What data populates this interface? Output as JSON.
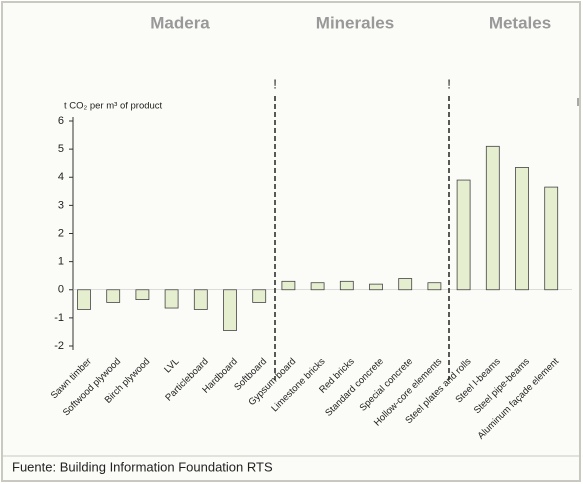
{
  "chart_data": {
    "type": "bar",
    "groups": [
      "Madera",
      "Minerales",
      "Metales"
    ],
    "annotations": [
      "!",
      "!"
    ],
    "y_label": "t CO₂ per m³ of product",
    "source": "Fuente: Building Information Foundation RTS",
    "categories": [
      "Sawn timber",
      "Softwood plywood",
      "Birch plywood",
      "LVL",
      "Particleboard",
      "Hardboard",
      "Softboard",
      "Gypsum board",
      "Limestone bricks",
      "Red bricks",
      "Standard concrete",
      "Special concrete",
      "Hollow-core elements",
      "Steel plates and rolls",
      "Steel I-beams",
      "Steel pipe-beams",
      "Aluminum façade element"
    ],
    "values": [
      -0.7,
      -0.45,
      -0.35,
      -0.65,
      -0.7,
      -1.45,
      -0.45,
      0.3,
      0.25,
      0.3,
      0.2,
      0.4,
      0.25,
      3.9,
      5.1,
      4.35,
      3.65
    ],
    "color": "#e6eed0",
    "ylim": [
      -2,
      6
    ],
    "yticks": [
      -2,
      -1,
      0,
      1,
      2,
      3,
      4,
      5,
      6
    ]
  }
}
